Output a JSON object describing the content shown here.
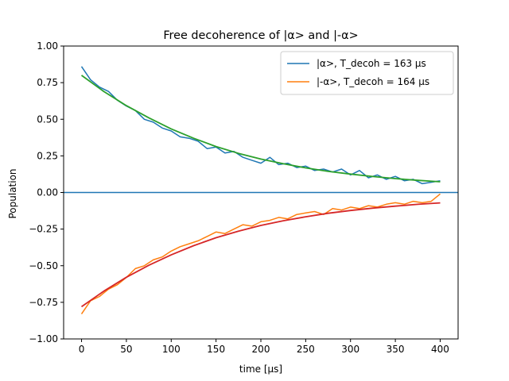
{
  "chart_data": {
    "type": "line",
    "title": "Free decoherence of |α> and |-α>",
    "xlabel": "time [μs]",
    "ylabel": "Population",
    "xlim": [
      -20,
      420
    ],
    "ylim": [
      -1.0,
      1.0
    ],
    "xticks": [
      0,
      50,
      100,
      150,
      200,
      250,
      300,
      350,
      400
    ],
    "yticks": [
      -1.0,
      -0.75,
      -0.5,
      -0.25,
      0.0,
      0.25,
      0.5,
      0.75,
      1.0
    ],
    "xtick_labels": [
      "0",
      "50",
      "100",
      "150",
      "200",
      "250",
      "300",
      "350",
      "400"
    ],
    "ytick_labels": [
      "−1.00",
      "−0.75",
      "−0.50",
      "−0.25",
      "0.00",
      "0.25",
      "0.50",
      "0.75",
      "1.00"
    ],
    "grid": false,
    "legend_position": "top-right",
    "hline": {
      "y": 0.0,
      "color": "#1f77b4"
    },
    "series": [
      {
        "name": "|α>, T_decoh = 163 μs",
        "kind": "noisy",
        "color": "#1f77b4",
        "x": [
          0,
          10,
          20,
          30,
          40,
          50,
          60,
          70,
          80,
          90,
          100,
          110,
          120,
          130,
          140,
          150,
          160,
          170,
          180,
          190,
          200,
          210,
          220,
          230,
          240,
          250,
          260,
          270,
          280,
          290,
          300,
          310,
          320,
          330,
          340,
          350,
          360,
          370,
          380,
          390,
          400
        ],
        "y": [
          0.86,
          0.77,
          0.72,
          0.69,
          0.63,
          0.59,
          0.56,
          0.5,
          0.48,
          0.44,
          0.42,
          0.38,
          0.37,
          0.35,
          0.3,
          0.31,
          0.27,
          0.28,
          0.24,
          0.22,
          0.2,
          0.24,
          0.19,
          0.2,
          0.17,
          0.18,
          0.15,
          0.16,
          0.14,
          0.16,
          0.12,
          0.15,
          0.1,
          0.12,
          0.09,
          0.11,
          0.08,
          0.09,
          0.06,
          0.07,
          0.08
        ]
      },
      {
        "name": "|-α>, T_decoh = 164 μs",
        "kind": "noisy",
        "color": "#ff7f0e",
        "x": [
          0,
          10,
          20,
          30,
          40,
          50,
          60,
          70,
          80,
          90,
          100,
          110,
          120,
          130,
          140,
          150,
          160,
          170,
          180,
          190,
          200,
          210,
          220,
          230,
          240,
          250,
          260,
          270,
          280,
          290,
          300,
          310,
          320,
          330,
          340,
          350,
          360,
          370,
          380,
          390,
          400
        ],
        "y": [
          -0.83,
          -0.74,
          -0.71,
          -0.66,
          -0.63,
          -0.58,
          -0.52,
          -0.5,
          -0.46,
          -0.44,
          -0.4,
          -0.37,
          -0.35,
          -0.33,
          -0.3,
          -0.27,
          -0.28,
          -0.25,
          -0.22,
          -0.23,
          -0.2,
          -0.19,
          -0.17,
          -0.18,
          -0.15,
          -0.14,
          -0.13,
          -0.15,
          -0.11,
          -0.12,
          -0.1,
          -0.11,
          -0.09,
          -0.1,
          -0.08,
          -0.07,
          -0.08,
          -0.06,
          -0.07,
          -0.06,
          -0.01
        ]
      },
      {
        "kind": "fit",
        "color": "#2ca02c",
        "x": [
          0,
          25,
          50,
          75,
          100,
          125,
          150,
          175,
          200,
          225,
          250,
          275,
          300,
          325,
          350,
          375,
          400
        ],
        "y": [
          0.8,
          0.689,
          0.593,
          0.51,
          0.434,
          0.37,
          0.314,
          0.267,
          0.228,
          0.196,
          0.168,
          0.144,
          0.126,
          0.109,
          0.095,
          0.083,
          0.073
        ]
      },
      {
        "kind": "fit",
        "color": "#d62728",
        "x": [
          0,
          25,
          50,
          75,
          100,
          125,
          150,
          175,
          200,
          225,
          250,
          275,
          300,
          325,
          350,
          375,
          400
        ],
        "y": [
          -0.78,
          -0.673,
          -0.579,
          -0.497,
          -0.426,
          -0.363,
          -0.309,
          -0.264,
          -0.225,
          -0.193,
          -0.166,
          -0.142,
          -0.123,
          -0.107,
          -0.093,
          -0.081,
          -0.071
        ]
      }
    ]
  }
}
